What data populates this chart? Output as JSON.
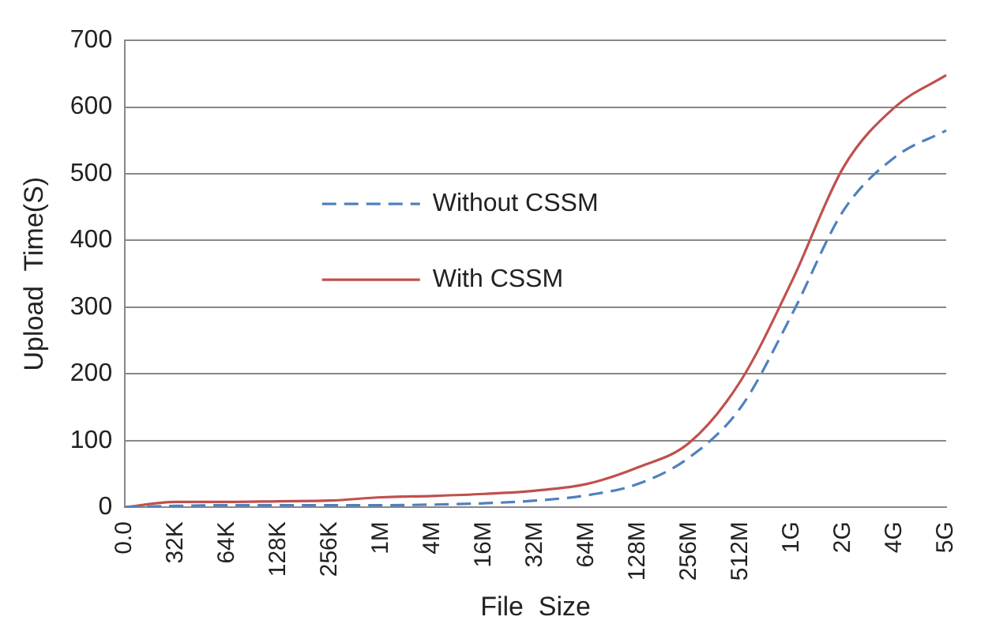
{
  "chart_data": {
    "type": "line",
    "xlabel": "File  Size",
    "ylabel": "Upload  Time(S)",
    "categories": [
      "0.0",
      "32K",
      "64K",
      "128K",
      "256K",
      "1M",
      "4M",
      "16M",
      "32M",
      "64M",
      "128M",
      "256M",
      "512M",
      "1G",
      "2G",
      "4G",
      "5G"
    ],
    "series": [
      {
        "name": "Without CSSM",
        "color": "#4f81bd",
        "line_style": "dashed",
        "values": [
          0,
          2,
          3,
          3,
          3,
          3,
          4,
          6,
          10,
          18,
          35,
          75,
          150,
          290,
          445,
          525,
          565
        ]
      },
      {
        "name": "With CSSM",
        "color": "#c0504d",
        "line_style": "solid",
        "values": [
          0,
          8,
          8,
          9,
          10,
          15,
          17,
          20,
          25,
          35,
          60,
          97,
          190,
          340,
          510,
          600,
          648
        ]
      }
    ],
    "ylim": [
      0,
      700
    ],
    "yticks": [
      0,
      100,
      200,
      300,
      400,
      500,
      600,
      700
    ],
    "grid": "y",
    "legend": "center",
    "marker": "none"
  }
}
